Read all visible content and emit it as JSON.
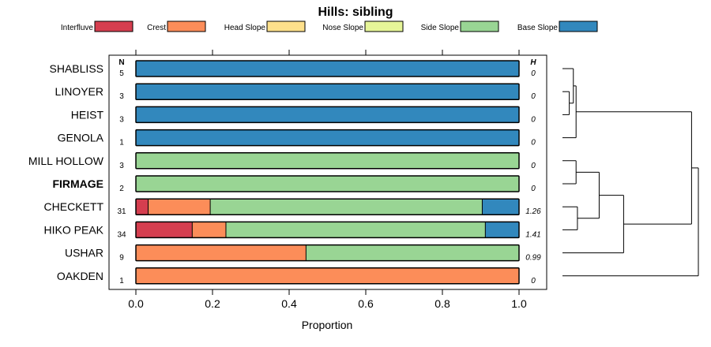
{
  "chart_data": {
    "type": "bar",
    "subtype": "stacked-horizontal-proportion",
    "title": "Hills: sibling",
    "xlabel": "Proportion",
    "ylabel": "",
    "xlim": [
      0,
      1
    ],
    "x_ticks": [
      0.0,
      0.2,
      0.4,
      0.6,
      0.8,
      1.0
    ],
    "x_tick_labels": [
      "0.0",
      "0.2",
      "0.4",
      "0.6",
      "0.8",
      "1.0"
    ],
    "n_header": "N",
    "h_header": "H",
    "legend_position": "top",
    "categories": [
      "Interfluve",
      "Crest",
      "Head Slope",
      "Nose Slope",
      "Side Slope",
      "Base Slope"
    ],
    "colors": {
      "Interfluve": "#D53E4F",
      "Crest": "#FC8D59",
      "Head Slope": "#FEE08B",
      "Nose Slope": "#E6F598",
      "Side Slope": "#99D594",
      "Base Slope": "#3288BD"
    },
    "rows": [
      {
        "name": "SHABLISS",
        "bold": false,
        "n": "5",
        "h": "0",
        "values": [
          0,
          0,
          0,
          0,
          0,
          1.0
        ]
      },
      {
        "name": "LINOYER",
        "bold": false,
        "n": "3",
        "h": "0",
        "values": [
          0,
          0,
          0,
          0,
          0,
          1.0
        ]
      },
      {
        "name": "HEIST",
        "bold": false,
        "n": "3",
        "h": "0",
        "values": [
          0,
          0,
          0,
          0,
          0,
          1.0
        ]
      },
      {
        "name": "GENOLA",
        "bold": false,
        "n": "1",
        "h": "0",
        "values": [
          0,
          0,
          0,
          0,
          0,
          1.0
        ]
      },
      {
        "name": "MILL HOLLOW",
        "bold": false,
        "n": "3",
        "h": "0",
        "values": [
          0,
          0,
          0,
          0,
          1.0,
          0
        ]
      },
      {
        "name": "FIRMAGE",
        "bold": true,
        "n": "2",
        "h": "0",
        "values": [
          0,
          0,
          0,
          0,
          1.0,
          0
        ]
      },
      {
        "name": "CHECKETT",
        "bold": false,
        "n": "31",
        "h": "1.26",
        "values": [
          0.032,
          0.162,
          0,
          0,
          0.71,
          0.096
        ]
      },
      {
        "name": "HIKO PEAK",
        "bold": false,
        "n": "34",
        "h": "1.41",
        "values": [
          0.147,
          0.088,
          0,
          0,
          0.677,
          0.088
        ]
      },
      {
        "name": "USHAR",
        "bold": false,
        "n": "9",
        "h": "0.99",
        "values": [
          0,
          0.444,
          0,
          0,
          0.556,
          0
        ]
      },
      {
        "name": "OAKDEN",
        "bold": false,
        "n": "1",
        "h": "0",
        "values": [
          0,
          1.0,
          0,
          0,
          0,
          0
        ]
      }
    ],
    "dendrogram": {
      "description": "hierarchical clustering of series (leaf order top to bottom matches rows)",
      "merges": [
        {
          "left": "LINOYER",
          "right": "HEIST",
          "height": 0.05
        },
        {
          "left": "SHABLISS",
          "right": "LINOYER+HEIST",
          "height": 0.08
        },
        {
          "left": "SHABLISS+LINOYER+HEIST",
          "right": "GENOLA",
          "height": 0.1
        },
        {
          "left": "MILL HOLLOW",
          "right": "FIRMAGE",
          "height": 0.1
        },
        {
          "left": "CHECKETT",
          "right": "HIKO PEAK",
          "height": 0.11
        },
        {
          "left": "MILL HOLLOW+FIRMAGE",
          "right": "CHECKETT+HIKO PEAK",
          "height": 0.27
        },
        {
          "left": "MILL HOLLOW..HIKO PEAK",
          "right": "USHAR",
          "height": 0.45
        },
        {
          "left": "SHABLISS..GENOLA",
          "right": "MILL HOLLOW..USHAR",
          "height": 0.95
        },
        {
          "left": "ALL_BUT_OAKDEN",
          "right": "OAKDEN",
          "height": 1.0
        }
      ]
    }
  }
}
